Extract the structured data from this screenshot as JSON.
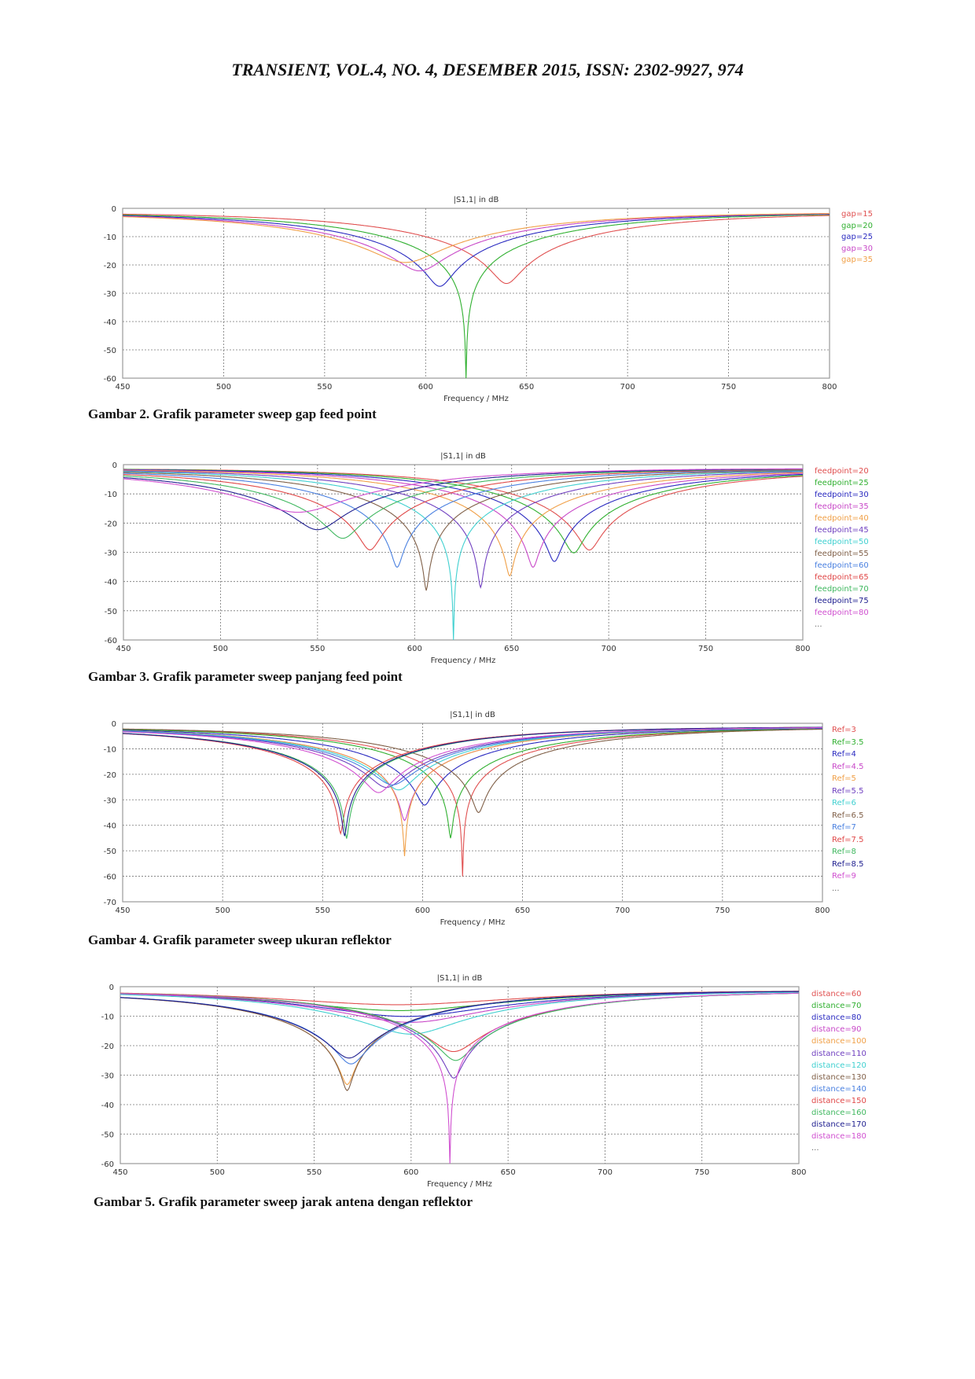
{
  "header": {
    "title": "TRANSIENT, VOL.4, NO. 4, DESEMBER 2015, ISSN: 2302-9927, 974"
  },
  "captions": [
    "Gambar 2. Grafik parameter sweep gap feed point",
    "Gambar 3. Grafik parameter sweep panjang feed point",
    "Gambar 4. Grafik parameter sweep ukuran reflektor",
    "Gambar 5. Grafik parameter sweep jarak antena dengan reflektor"
  ],
  "chart_data": [
    {
      "type": "line",
      "title": "|S1,1| in dB",
      "xlabel": "Frequency / MHz",
      "ylabel": "",
      "xlim": [
        450,
        800
      ],
      "ylim": [
        -60,
        0
      ],
      "xticks": [
        "450",
        "500",
        "550",
        "600",
        "650",
        "700",
        "750",
        "800"
      ],
      "yticks": [
        "0",
        "-10",
        "-20",
        "-30",
        "-40",
        "-50",
        "-60"
      ],
      "grid": true,
      "legend": "right",
      "legend_more": "",
      "series": [
        {
          "name": "gap=15",
          "color": "#e05050",
          "min_freq_mhz": 640,
          "min_db": -26.5
        },
        {
          "name": "gap=20",
          "color": "#30b030",
          "min_freq_mhz": 620,
          "min_db": -60
        },
        {
          "name": "gap=25",
          "color": "#2a2ac0",
          "min_freq_mhz": 607,
          "min_db": -27.5
        },
        {
          "name": "gap=30",
          "color": "#c848c8",
          "min_freq_mhz": 597,
          "min_db": -22
        },
        {
          "name": "gap=35",
          "color": "#f0a048",
          "min_freq_mhz": 590,
          "min_db": -19
        }
      ]
    },
    {
      "type": "line",
      "title": "|S1,1| in dB",
      "xlabel": "Frequency / MHz",
      "ylabel": "",
      "xlim": [
        450,
        800
      ],
      "ylim": [
        -60,
        0
      ],
      "xticks": [
        "450",
        "500",
        "550",
        "600",
        "650",
        "700",
        "750",
        "800"
      ],
      "yticks": [
        "0",
        "-10",
        "-20",
        "-30",
        "-40",
        "-50",
        "-60"
      ],
      "grid": true,
      "legend": "right",
      "legend_more": "...",
      "series": [
        {
          "name": "feedpoint=20",
          "color": "#e05050",
          "min_freq_mhz": 690,
          "min_db": -29
        },
        {
          "name": "feedpoint=25",
          "color": "#30b030",
          "min_freq_mhz": 682,
          "min_db": -30
        },
        {
          "name": "feedpoint=30",
          "color": "#2a2ac0",
          "min_freq_mhz": 672,
          "min_db": -33
        },
        {
          "name": "feedpoint=35",
          "color": "#c848c8",
          "min_freq_mhz": 661,
          "min_db": -35
        },
        {
          "name": "feedpoint=40",
          "color": "#f0a048",
          "min_freq_mhz": 649,
          "min_db": -38
        },
        {
          "name": "feedpoint=45",
          "color": "#7040c0",
          "min_freq_mhz": 634,
          "min_db": -42
        },
        {
          "name": "feedpoint=50",
          "color": "#40d0d0",
          "min_freq_mhz": 620,
          "min_db": -60
        },
        {
          "name": "feedpoint=55",
          "color": "#806048",
          "min_freq_mhz": 606,
          "min_db": -43
        },
        {
          "name": "feedpoint=60",
          "color": "#4a80e0",
          "min_freq_mhz": 591,
          "min_db": -35
        },
        {
          "name": "feedpoint=65",
          "color": "#e04848",
          "min_freq_mhz": 577,
          "min_db": -29
        },
        {
          "name": "feedpoint=70",
          "color": "#40b860",
          "min_freq_mhz": 563,
          "min_db": -25
        },
        {
          "name": "feedpoint=75",
          "color": "#202090",
          "min_freq_mhz": 550,
          "min_db": -22
        },
        {
          "name": "feedpoint=80",
          "color": "#d050d0",
          "min_freq_mhz": 540,
          "min_db": -16
        }
      ]
    },
    {
      "type": "line",
      "title": "|S1,1| in dB",
      "xlabel": "Frequency / MHz",
      "ylabel": "",
      "xlim": [
        450,
        800
      ],
      "ylim": [
        -70,
        0
      ],
      "xticks": [
        "450",
        "500",
        "550",
        "600",
        "650",
        "700",
        "750",
        "800"
      ],
      "yticks": [
        "0",
        "-10",
        "-20",
        "-30",
        "-40",
        "-50",
        "-60",
        "-70"
      ],
      "grid": true,
      "legend": "right",
      "legend_more": "...",
      "series": [
        {
          "name": "Ref=3",
          "color": "#e05050",
          "min_freq_mhz": 620,
          "min_db": -60
        },
        {
          "name": "Ref=3.5",
          "color": "#30b030",
          "min_freq_mhz": 614,
          "min_db": -45
        },
        {
          "name": "Ref=4",
          "color": "#2a2ac0",
          "min_freq_mhz": 601,
          "min_db": -32
        },
        {
          "name": "Ref=4.5",
          "color": "#c848c8",
          "min_freq_mhz": 591,
          "min_db": -38
        },
        {
          "name": "Ref=5",
          "color": "#f0a048",
          "min_freq_mhz": 591,
          "min_db": -52
        },
        {
          "name": "Ref=5.5",
          "color": "#7040c0",
          "min_freq_mhz": 582,
          "min_db": -25
        },
        {
          "name": "Ref=6",
          "color": "#40d0d0",
          "min_freq_mhz": 588,
          "min_db": -26
        },
        {
          "name": "Ref=6.5",
          "color": "#806048",
          "min_freq_mhz": 628,
          "min_db": -35
        },
        {
          "name": "Ref=7",
          "color": "#4a80e0",
          "min_freq_mhz": 585,
          "min_db": -24
        },
        {
          "name": "Ref=7.5",
          "color": "#e04848",
          "min_freq_mhz": 559,
          "min_db": -43
        },
        {
          "name": "Ref=8",
          "color": "#40b860",
          "min_freq_mhz": 562,
          "min_db": -45
        },
        {
          "name": "Ref=8.5",
          "color": "#202090",
          "min_freq_mhz": 561,
          "min_db": -44
        },
        {
          "name": "Ref=9",
          "color": "#d050d0",
          "min_freq_mhz": 578,
          "min_db": -27
        }
      ]
    },
    {
      "type": "line",
      "title": "|S1,1| in dB",
      "xlabel": "Frequency / MHz",
      "ylabel": "",
      "xlim": [
        450,
        800
      ],
      "ylim": [
        -60,
        0
      ],
      "xticks": [
        "450",
        "500",
        "550",
        "600",
        "650",
        "700",
        "750",
        "800"
      ],
      "yticks": [
        "0",
        "-10",
        "-20",
        "-30",
        "-40",
        "-50",
        "-60"
      ],
      "grid": true,
      "legend": "right",
      "legend_more": "...",
      "series": [
        {
          "name": "distance=60",
          "color": "#e05050",
          "min_freq_mhz": 595,
          "min_db": -6
        },
        {
          "name": "distance=70",
          "color": "#30b030",
          "min_freq_mhz": 595,
          "min_db": -8
        },
        {
          "name": "distance=80",
          "color": "#2a2ac0",
          "min_freq_mhz": 598,
          "min_db": -10
        },
        {
          "name": "distance=90",
          "color": "#c848c8",
          "min_freq_mhz": 600,
          "min_db": -12
        },
        {
          "name": "distance=100",
          "color": "#f0a048",
          "min_freq_mhz": 567,
          "min_db": -33
        },
        {
          "name": "distance=110",
          "color": "#7040c0",
          "min_freq_mhz": 622,
          "min_db": -31
        },
        {
          "name": "distance=120",
          "color": "#40d0d0",
          "min_freq_mhz": 600,
          "min_db": -16
        },
        {
          "name": "distance=130",
          "color": "#806048",
          "min_freq_mhz": 567,
          "min_db": -35
        },
        {
          "name": "distance=140",
          "color": "#4a80e0",
          "min_freq_mhz": 569,
          "min_db": -26
        },
        {
          "name": "distance=150",
          "color": "#e04848",
          "min_freq_mhz": 622,
          "min_db": -22
        },
        {
          "name": "distance=160",
          "color": "#40b860",
          "min_freq_mhz": 623,
          "min_db": -25
        },
        {
          "name": "distance=170",
          "color": "#202090",
          "min_freq_mhz": 568,
          "min_db": -24
        },
        {
          "name": "distance=180",
          "color": "#d050d0",
          "min_freq_mhz": 620,
          "min_db": -60
        }
      ]
    }
  ]
}
